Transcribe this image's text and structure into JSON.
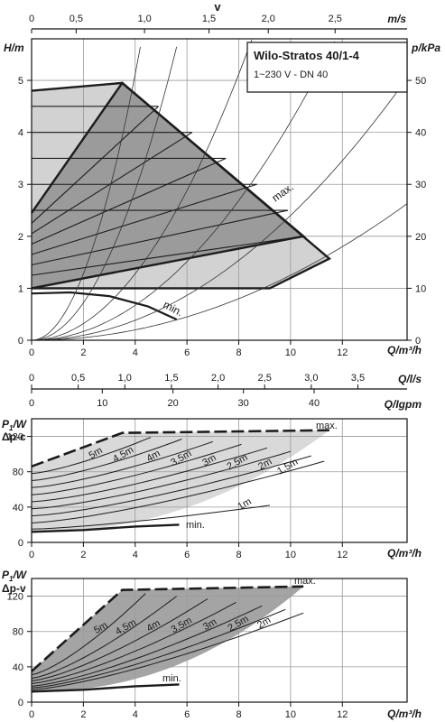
{
  "colors": {
    "frame": "#111111",
    "grid": "#9a9a9a",
    "curve_dark": "#1c1c1c",
    "system_curve": "#333333",
    "band_light": "#d2d2d2",
    "band_medium": "#9b9b9b",
    "power_fill_light": "#d9d9d9",
    "power_fill_dark": "#a4a4a4"
  },
  "header_box": {
    "title": "Wilo-Stratos 40/1-4",
    "subtitle": "1~230 V - DN 40"
  },
  "top_axes": {
    "velocity_label": "v",
    "velocity_unit": "m/s",
    "velocity_ticks": [
      "0",
      "0,5",
      "1,0",
      "1,5",
      "2,0",
      "2,5"
    ],
    "velocity_tick_flow": [
      0,
      1.72,
      4.36,
      6.85,
      9.14,
      11.72
    ]
  },
  "mid_axes": {
    "ls_label": "Q/l/s",
    "ls_ticks": [
      "0",
      "0,5",
      "1,0",
      "1,5",
      "2,0",
      "2,5",
      "3,0",
      "3,5"
    ],
    "ls_tick_flow": [
      0,
      1.8,
      3.6,
      5.4,
      7.2,
      9.0,
      10.8,
      12.6
    ],
    "igpm_label": "Q/Igpm",
    "igpm_ticks": [
      "0",
      "10",
      "20",
      "30",
      "40"
    ],
    "igpm_tick_flow": [
      0,
      2.73,
      5.46,
      8.18,
      10.91
    ]
  },
  "chart_data": [
    {
      "id": "head_curve",
      "type": "line",
      "xlabel": "Q/m³/h",
      "ylabel": "H/m",
      "y2label": "p/kPa",
      "xlim": [
        0,
        14.5
      ],
      "ylim": [
        0,
        5.8
      ],
      "xticks": [
        0,
        2,
        4,
        6,
        8,
        10,
        12
      ],
      "yticks": [
        0,
        1,
        2,
        3,
        4,
        5
      ],
      "y2ticks": [
        0,
        10,
        20,
        30,
        40,
        50
      ],
      "grid": true,
      "annotations": [
        "max.",
        "min."
      ],
      "regions": [
        {
          "name": "light",
          "points": [
            [
              0,
              4.8
            ],
            [
              3.5,
              4.95
            ],
            [
              11.5,
              1.57
            ],
            [
              9.2,
              1.0
            ],
            [
              0,
              1.0
            ]
          ]
        },
        {
          "name": "dark",
          "points": [
            [
              0,
              2.45
            ],
            [
              3.5,
              4.95
            ],
            [
              10.5,
              2.0
            ],
            [
              0,
              1.0
            ]
          ]
        }
      ],
      "series": [
        {
          "name": "max.",
          "x": [
            0,
            3.5,
            11.5,
            9.2,
            0
          ],
          "y": [
            4.8,
            4.95,
            1.57,
            1.0,
            1.0
          ]
        },
        {
          "name": "",
          "x": [
            0,
            3.5,
            10.5,
            0
          ],
          "y": [
            2.45,
            4.95,
            2.0,
            1.0
          ]
        },
        {
          "name": "min.",
          "x": [
            0,
            1.5,
            3.0,
            4.5,
            5.6
          ],
          "y": [
            0.9,
            0.92,
            0.85,
            0.65,
            0.4
          ]
        }
      ],
      "constant_lines": [
        {
          "y": 4.5,
          "x_end": 4.9
        },
        {
          "y": 4.0,
          "x_end": 6.2
        },
        {
          "y": 3.5,
          "x_end": 7.5
        },
        {
          "y": 3.0,
          "x_end": 8.7
        },
        {
          "y": 2.5,
          "x_end": 9.9
        }
      ],
      "dark_band_lines": [
        {
          "x0": 0,
          "y0": 2.25,
          "x1": 4.9,
          "y1": 4.5
        },
        {
          "x0": 0,
          "y0": 2.05,
          "x1": 6.2,
          "y1": 4.0
        },
        {
          "x0": 0,
          "y0": 1.85,
          "x1": 7.5,
          "y1": 3.5
        },
        {
          "x0": 0,
          "y0": 1.65,
          "x1": 8.7,
          "y1": 3.0
        },
        {
          "x0": 0,
          "y0": 1.45,
          "x1": 9.9,
          "y1": 2.5
        },
        {
          "x0": 0,
          "y0": 1.25,
          "x1": 10.5,
          "y1": 2.0
        }
      ],
      "system_curve_coeffs": [
        0.18,
        0.32,
        0.08,
        0.042,
        0.024,
        0.0125
      ]
    },
    {
      "id": "power_dpc",
      "type": "area",
      "mode_label": "Δp-c",
      "xlabel": "Q/m³/h",
      "ylabel": "P1/W",
      "xlim": [
        0,
        14.5
      ],
      "ylim": [
        0,
        140
      ],
      "xticks": [
        0,
        2,
        4,
        6,
        8,
        10,
        12
      ],
      "yticks": [
        0,
        40,
        80,
        120
      ],
      "grid": true,
      "annotations": [
        "max.",
        "min."
      ],
      "series": [
        {
          "name": "max.",
          "x": [
            0,
            3.5,
            11.5
          ],
          "y": [
            86,
            124,
            127
          ]
        },
        {
          "name": "min.",
          "x": [
            0,
            2.0,
            4.0,
            5.7
          ],
          "y": [
            12,
            14,
            18,
            20
          ]
        }
      ],
      "level_labels": [
        "5m",
        "4,5m",
        "4m",
        "3,5m",
        "3m",
        "2,5m",
        "2m",
        "1,5m",
        "1m"
      ],
      "level_curves": [
        {
          "y0": 78,
          "x1": 4.6,
          "y1": 119
        },
        {
          "y0": 70,
          "x1": 5.8,
          "y1": 117
        },
        {
          "y0": 62,
          "x1": 7.0,
          "y1": 114
        },
        {
          "y0": 54,
          "x1": 8.1,
          "y1": 111
        },
        {
          "y0": 46,
          "x1": 9.1,
          "y1": 107
        },
        {
          "y0": 38,
          "x1": 10.0,
          "y1": 103
        },
        {
          "y0": 30,
          "x1": 10.8,
          "y1": 98
        },
        {
          "y0": 22,
          "x1": 11.3,
          "y1": 92
        },
        {
          "y0": 15,
          "x1": 9.2,
          "y1": 42
        }
      ]
    },
    {
      "id": "power_dpv",
      "type": "area",
      "mode_label": "Δp-v",
      "xlabel": "Q/m³/h",
      "ylabel": "P1/W",
      "xlim": [
        0,
        14.5
      ],
      "ylim": [
        0,
        140
      ],
      "xticks": [
        0,
        2,
        4,
        6,
        8,
        10,
        12
      ],
      "yticks": [
        0,
        40,
        80,
        120
      ],
      "grid": true,
      "annotations": [
        "max.",
        "min."
      ],
      "series": [
        {
          "name": "max.",
          "x": [
            0,
            3.5,
            10.5
          ],
          "y": [
            35,
            127,
            131
          ]
        },
        {
          "name": "min.",
          "x": [
            0,
            2.0,
            4.0,
            5.7
          ],
          "y": [
            12,
            14,
            18,
            20
          ]
        }
      ],
      "level_labels": [
        "5m",
        "4,5m",
        "4m",
        "3,5m",
        "3m",
        "2,5m",
        "2m"
      ],
      "level_curves": [
        {
          "y0": 31,
          "x1": 4.4,
          "y1": 123
        },
        {
          "y0": 27,
          "x1": 5.6,
          "y1": 120
        },
        {
          "y0": 24,
          "x1": 6.8,
          "y1": 117
        },
        {
          "y0": 21,
          "x1": 7.9,
          "y1": 113
        },
        {
          "y0": 18,
          "x1": 8.9,
          "y1": 109
        },
        {
          "y0": 16,
          "x1": 9.8,
          "y1": 105
        },
        {
          "y0": 14,
          "x1": 10.5,
          "y1": 101
        }
      ]
    }
  ]
}
